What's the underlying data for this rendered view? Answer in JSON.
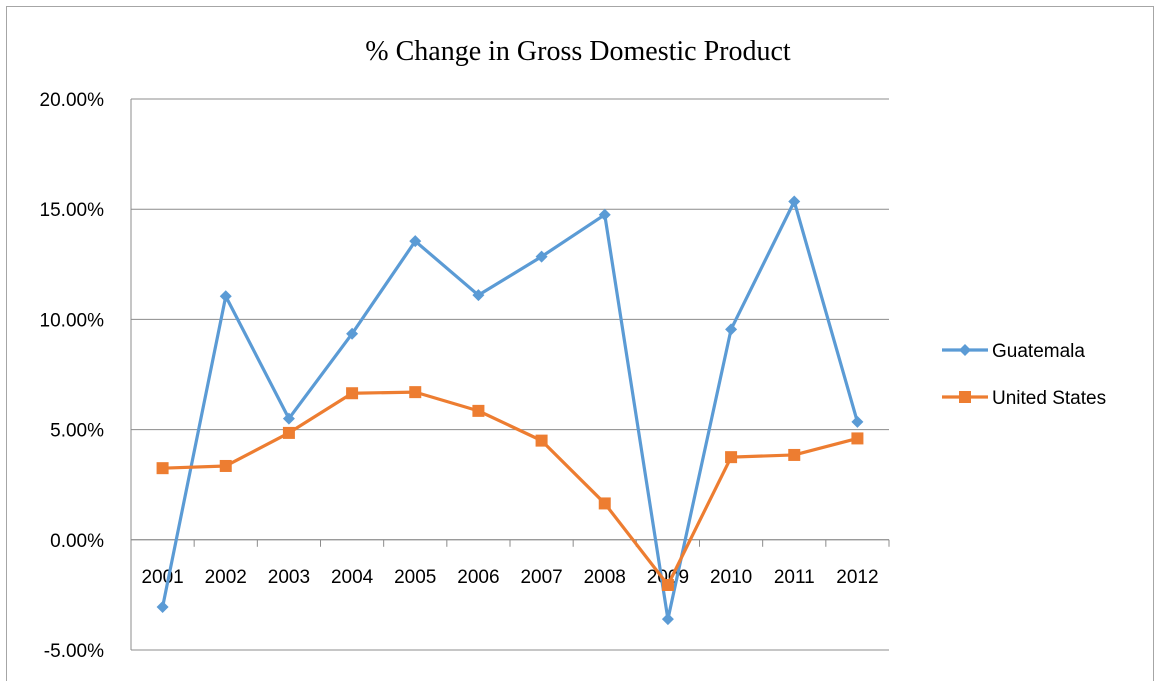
{
  "chart_data": {
    "type": "line",
    "title": "% Change in Gross Domestic Product",
    "xlabel": "",
    "ylabel": "",
    "categories": [
      "2001",
      "2002",
      "2003",
      "2004",
      "2005",
      "2006",
      "2007",
      "2008",
      "2009",
      "2010",
      "2011",
      "2012"
    ],
    "ylim": [
      -0.05,
      0.2
    ],
    "yticks": [
      "-5.00%",
      "0.00%",
      "5.00%",
      "10.00%",
      "15.00%",
      "20.00%"
    ],
    "grid": true,
    "legend": "right",
    "series": [
      {
        "name": "Guatemala",
        "color": "#5b9bd5",
        "marker": "diamond",
        "values": [
          -0.0305,
          0.1105,
          0.055,
          0.0935,
          0.1355,
          0.111,
          0.1285,
          0.1475,
          -0.036,
          0.0955,
          0.1535,
          0.0535
        ]
      },
      {
        "name": "United States",
        "color": "#ed7d31",
        "marker": "square",
        "values": [
          0.0325,
          0.0335,
          0.0485,
          0.0665,
          0.067,
          0.0585,
          0.045,
          0.0165,
          -0.0205,
          0.0375,
          0.0385,
          0.046
        ]
      }
    ]
  }
}
